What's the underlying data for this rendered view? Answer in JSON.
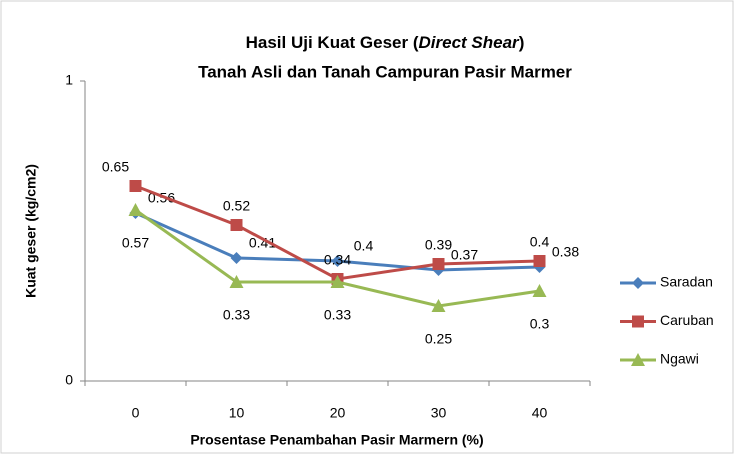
{
  "chart_data": {
    "type": "line",
    "title": [
      "Hasil Uji Kuat Geser (",
      "Direct Shear",
      ")"
    ],
    "subtitle": "Tanah Asli dan Tanah Campuran Pasir Marmer",
    "x_label": "Prosentase Penambahan Pasir Marmern (%)",
    "y_label": "Kuat geser (kg/cm2)",
    "categories": [
      "0",
      "10",
      "20",
      "30",
      "40"
    ],
    "series": [
      {
        "name": "Saradan",
        "color": "#4a7ebb",
        "marker": "diamond",
        "values": [
          0.56,
          0.41,
          0.4,
          0.37,
          0.38
        ]
      },
      {
        "name": "Caruban",
        "color": "#be4b48",
        "marker": "square",
        "values": [
          0.65,
          0.52,
          0.34,
          0.39,
          0.4
        ]
      },
      {
        "name": "Ngawi",
        "color": "#98b954",
        "marker": "triangle",
        "values": [
          0.57,
          0.33,
          0.33,
          0.25,
          0.3
        ]
      }
    ],
    "ylim": [
      0,
      1
    ],
    "yticks": [
      0,
      1
    ],
    "legend": "right"
  }
}
